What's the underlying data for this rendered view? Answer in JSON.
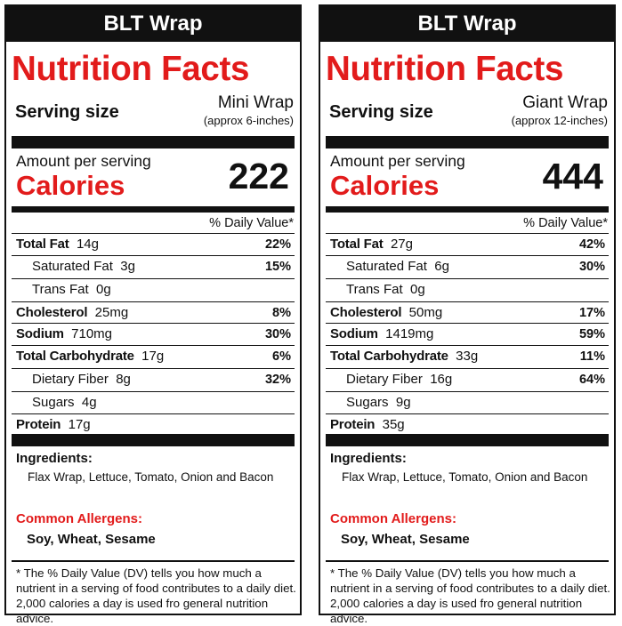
{
  "labels": [
    {
      "product": "BLT Wrap",
      "title": "Nutrition Facts",
      "serving_label": "Serving size",
      "serving_size": "Mini Wrap",
      "serving_note": "(approx 6-inches)",
      "amount_per_serving": "Amount per serving",
      "calories_label": "Calories",
      "calories": "222",
      "dv_header": "% Daily Value*",
      "nutrients": [
        {
          "name": "Total Fat",
          "amount": "14g",
          "dv": "22%"
        },
        {
          "name": "Saturated Fat",
          "amount": "3g",
          "dv": "15%"
        },
        {
          "name": "Trans Fat",
          "amount": "0g",
          "dv": ""
        },
        {
          "name": "Cholesterol",
          "amount": "25mg",
          "dv": "8%"
        },
        {
          "name": "Sodium",
          "amount": "710mg",
          "dv": "30%"
        },
        {
          "name": "Total Carbohydrate",
          "amount": "17g",
          "dv": "6%"
        },
        {
          "name": "Dietary Fiber",
          "amount": "8g",
          "dv": "32%"
        },
        {
          "name": "Sugars",
          "amount": "4g",
          "dv": ""
        },
        {
          "name": "Protein",
          "amount": "17g",
          "dv": ""
        }
      ],
      "ingredients_label": "Ingredients:",
      "ingredients": "Flax Wrap, Lettuce, Tomato, Onion and Bacon",
      "allergens_label": "Common Allergens:",
      "allergens": "Soy, Wheat, Sesame",
      "footnote": "* The % Daily Value (DV) tells you how much a nutrient in a serving of food contributes to a daily diet.  2,000 calories a day is used fro general nutrition advice."
    },
    {
      "product": "BLT Wrap",
      "title": "Nutrition Facts",
      "serving_label": "Serving size",
      "serving_size": "Giant Wrap",
      "serving_note": "(approx 12-inches)",
      "amount_per_serving": "Amount per serving",
      "calories_label": "Calories",
      "calories": "444",
      "dv_header": "% Daily Value*",
      "nutrients": [
        {
          "name": "Total Fat",
          "amount": "27g",
          "dv": "42%"
        },
        {
          "name": "Saturated Fat",
          "amount": "6g",
          "dv": "30%"
        },
        {
          "name": "Trans Fat",
          "amount": "0g",
          "dv": ""
        },
        {
          "name": "Cholesterol",
          "amount": "50mg",
          "dv": "17%"
        },
        {
          "name": "Sodium",
          "amount": "1419mg",
          "dv": "59%"
        },
        {
          "name": "Total Carbohydrate",
          "amount": "33g",
          "dv": "11%"
        },
        {
          "name": "Dietary Fiber",
          "amount": "16g",
          "dv": "64%"
        },
        {
          "name": "Sugars",
          "amount": "9g",
          "dv": ""
        },
        {
          "name": "Protein",
          "amount": "35g",
          "dv": ""
        }
      ],
      "ingredients_label": "Ingredients:",
      "ingredients": "Flax Wrap, Lettuce, Tomato, Onion and Bacon",
      "allergens_label": "Common Allergens:",
      "allergens": "Soy, Wheat, Sesame",
      "footnote": "* The % Daily Value (DV) tells you how much a nutrient in a serving of food contributes to a daily diet.  2,000 calories a day is used fro general nutrition advice."
    }
  ],
  "colors": {
    "accent_red": "#e21b1b",
    "ink": "#111111"
  }
}
